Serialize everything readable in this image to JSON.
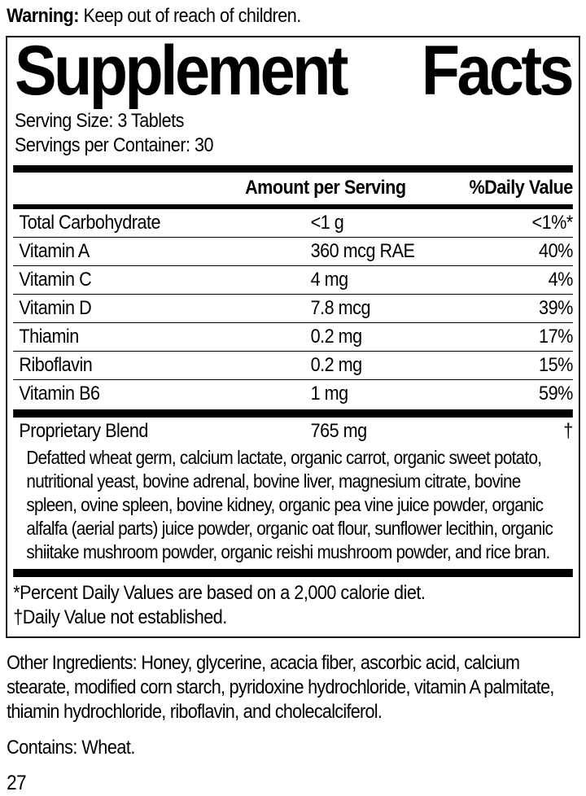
{
  "warning": {
    "label": "Warning:",
    "text": " Keep out of reach of children."
  },
  "panel": {
    "title_left": "Supplement",
    "title_right": "Facts",
    "serving_size": "Serving Size: 3 Tablets",
    "servings_per_container": "Servings per Container: 30",
    "columns": {
      "amount": "Amount per Serving",
      "daily_value": "%Daily Value"
    },
    "rows": [
      {
        "name": "Total Carbohydrate",
        "amount": "<1 g",
        "dv": "<1%*"
      },
      {
        "name": "Vitamin A",
        "amount": "360 mcg RAE",
        "dv": "40%"
      },
      {
        "name": "Vitamin C",
        "amount": "4 mg",
        "dv": "4%"
      },
      {
        "name": "Vitamin D",
        "amount": "7.8 mcg",
        "dv": "39%"
      },
      {
        "name": "Thiamin",
        "amount": "0.2 mg",
        "dv": "17%"
      },
      {
        "name": "Riboflavin",
        "amount": "0.2 mg",
        "dv": "15%"
      },
      {
        "name": "Vitamin B6",
        "amount": "1 mg",
        "dv": "59%"
      }
    ],
    "blend": {
      "name": "Proprietary Blend",
      "amount": "765 mg",
      "dv": "†",
      "description": "Defatted wheat germ, calcium lactate, organic carrot, organic sweet potato, nutritional yeast, bovine adrenal, bovine liver, magnesium citrate, bovine spleen, ovine spleen, bovine kidney, organic pea vine juice powder, organic alfalfa (aerial parts) juice powder, organic oat flour, sunflower lecithin, organic shiitake mushroom powder, organic reishi mushroom powder, and rice bran."
    },
    "footnotes": [
      "*Percent Daily Values are based on a 2,000 calorie diet.",
      "†Daily Value not established."
    ]
  },
  "other_ingredients": "Other Ingredients: Honey, glycerine, acacia fiber, ascorbic acid, calcium stearate,  modified corn starch, pyridoxine hydrochloride, vitamin A palmitate, thiamin hydrochloride, riboflavin, and cholecalciferol.",
  "contains": "Contains: Wheat.",
  "page_number": "27",
  "colors": {
    "text": "#000000",
    "background": "#ffffff",
    "rule": "#000000"
  }
}
